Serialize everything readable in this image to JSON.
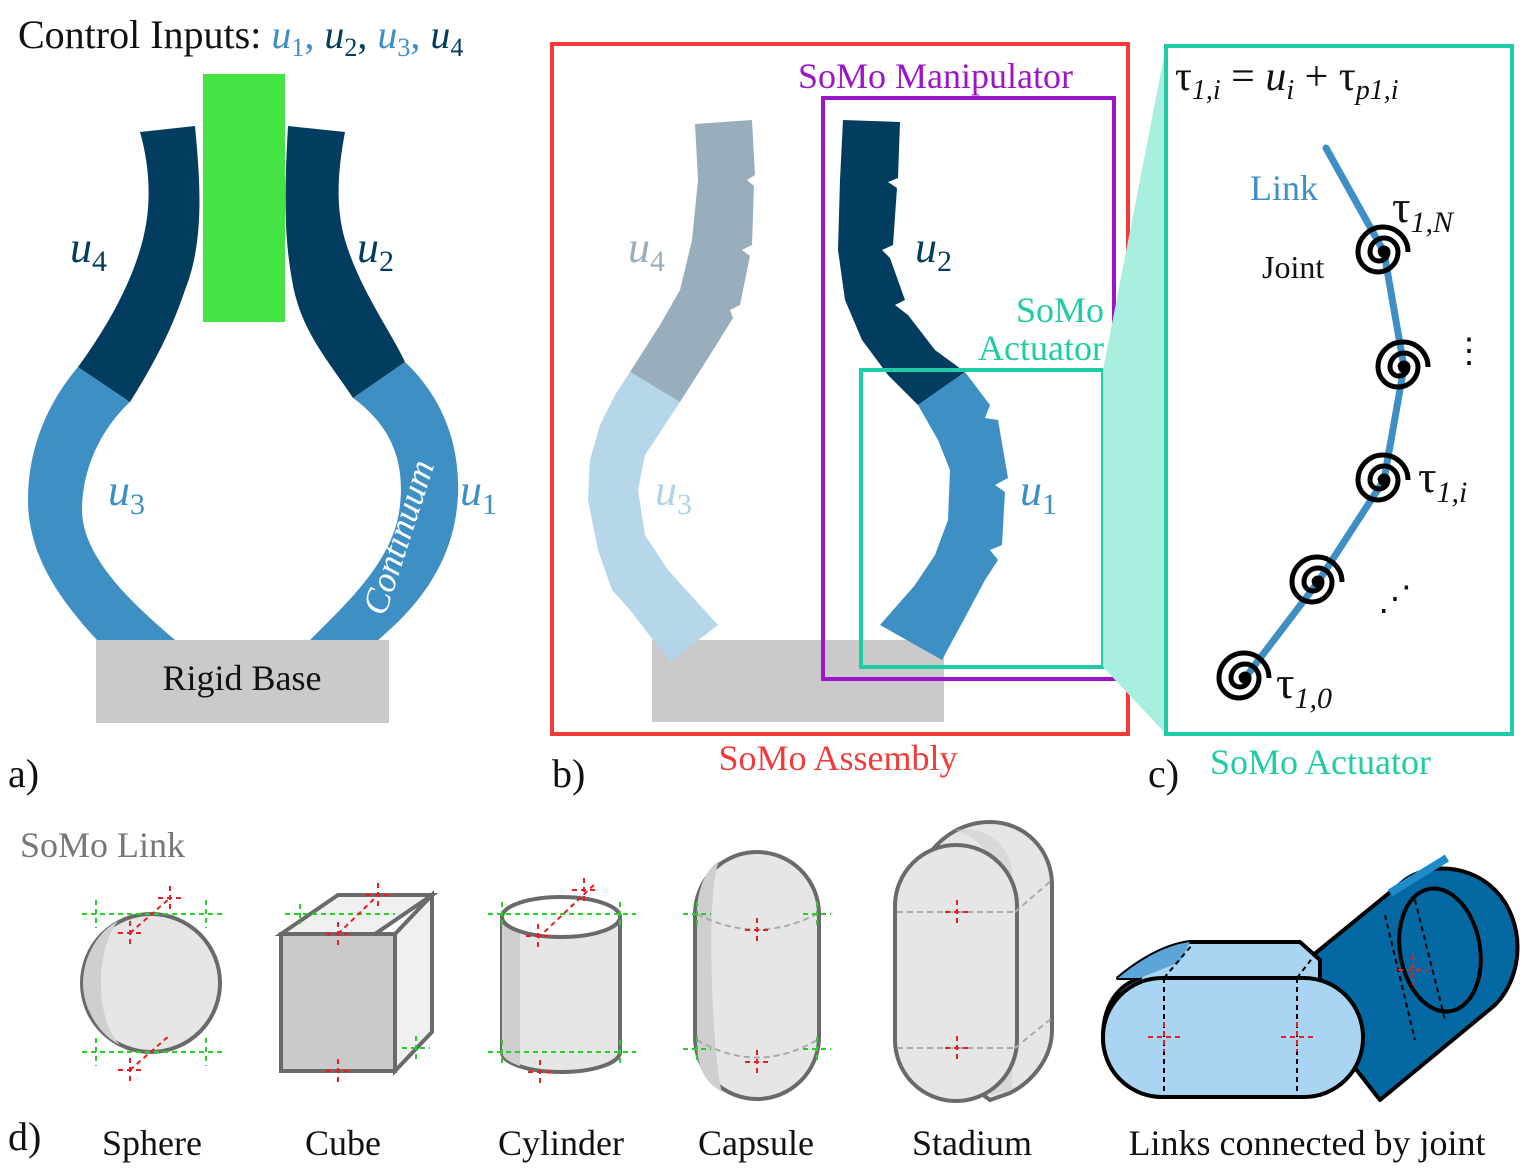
{
  "panel_a": {
    "label": "a)",
    "control_prefix": "Control Inputs: ",
    "control_inputs": [
      {
        "base": "u",
        "sub": "1",
        "color": "#3e8fc4"
      },
      {
        "base": "u",
        "sub": "2",
        "color": "#023c5e"
      },
      {
        "base": "u",
        "sub": "3",
        "color": "#3e8fc4"
      },
      {
        "base": "u",
        "sub": "4",
        "color": "#023c5e"
      }
    ],
    "sep": ", ",
    "u4": {
      "base": "u",
      "sub": "4"
    },
    "u2": {
      "base": "u",
      "sub": "2"
    },
    "u3": {
      "base": "u",
      "sub": "3"
    },
    "u1": {
      "base": "u",
      "sub": "1"
    },
    "continuum": "Continuum",
    "base_label": "Rigid Base"
  },
  "panel_b": {
    "label": "b)",
    "assembly": "SoMo Assembly",
    "manipulator": "SoMo Manipulator",
    "actuator_line1": "SoMo",
    "actuator_line2": "Actuator",
    "u4": {
      "base": "u",
      "sub": "4"
    },
    "u2": {
      "base": "u",
      "sub": "2"
    },
    "u3": {
      "base": "u",
      "sub": "3"
    },
    "u1": {
      "base": "u",
      "sub": "1"
    }
  },
  "panel_c": {
    "label": "c)",
    "title": "SoMo Actuator",
    "eq_lhs_base": "τ",
    "eq_lhs_sub": "1,i",
    "eq_equals": " = ",
    "eq_u": "u",
    "eq_u_sub": "i",
    "eq_plus": " + ",
    "eq_rhs_base": "τ",
    "eq_rhs_sub": "p1,i",
    "link": "Link",
    "joint": "Joint",
    "tau_N_base": "τ",
    "tau_N_sub": "1,N",
    "tau_i_base": "τ",
    "tau_i_sub": "1,i",
    "tau_0_base": "τ",
    "tau_0_sub": "1,0",
    "vdots": "⋮",
    "ddots": "⋰"
  },
  "panel_d": {
    "label": "d)",
    "title": "SoMo Link",
    "shapes": [
      "Sphere",
      "Cube",
      "Cylinder",
      "Capsule",
      "Stadium",
      "Links connected by joint"
    ]
  },
  "colors": {
    "dark_blue": "#023c5e",
    "mid_blue": "#3e8fc4",
    "faded_dark": "#98aebd",
    "faded_light": "#b2d4e8",
    "green": "#45e445",
    "base_gray": "#cacaca",
    "red": "#f23a3a",
    "purple": "#9b16c8",
    "teal": "#1fcca4",
    "teal_fill": "#a8efe0",
    "link_light": "#a9d5f3",
    "link_dark": "#0469a3"
  }
}
